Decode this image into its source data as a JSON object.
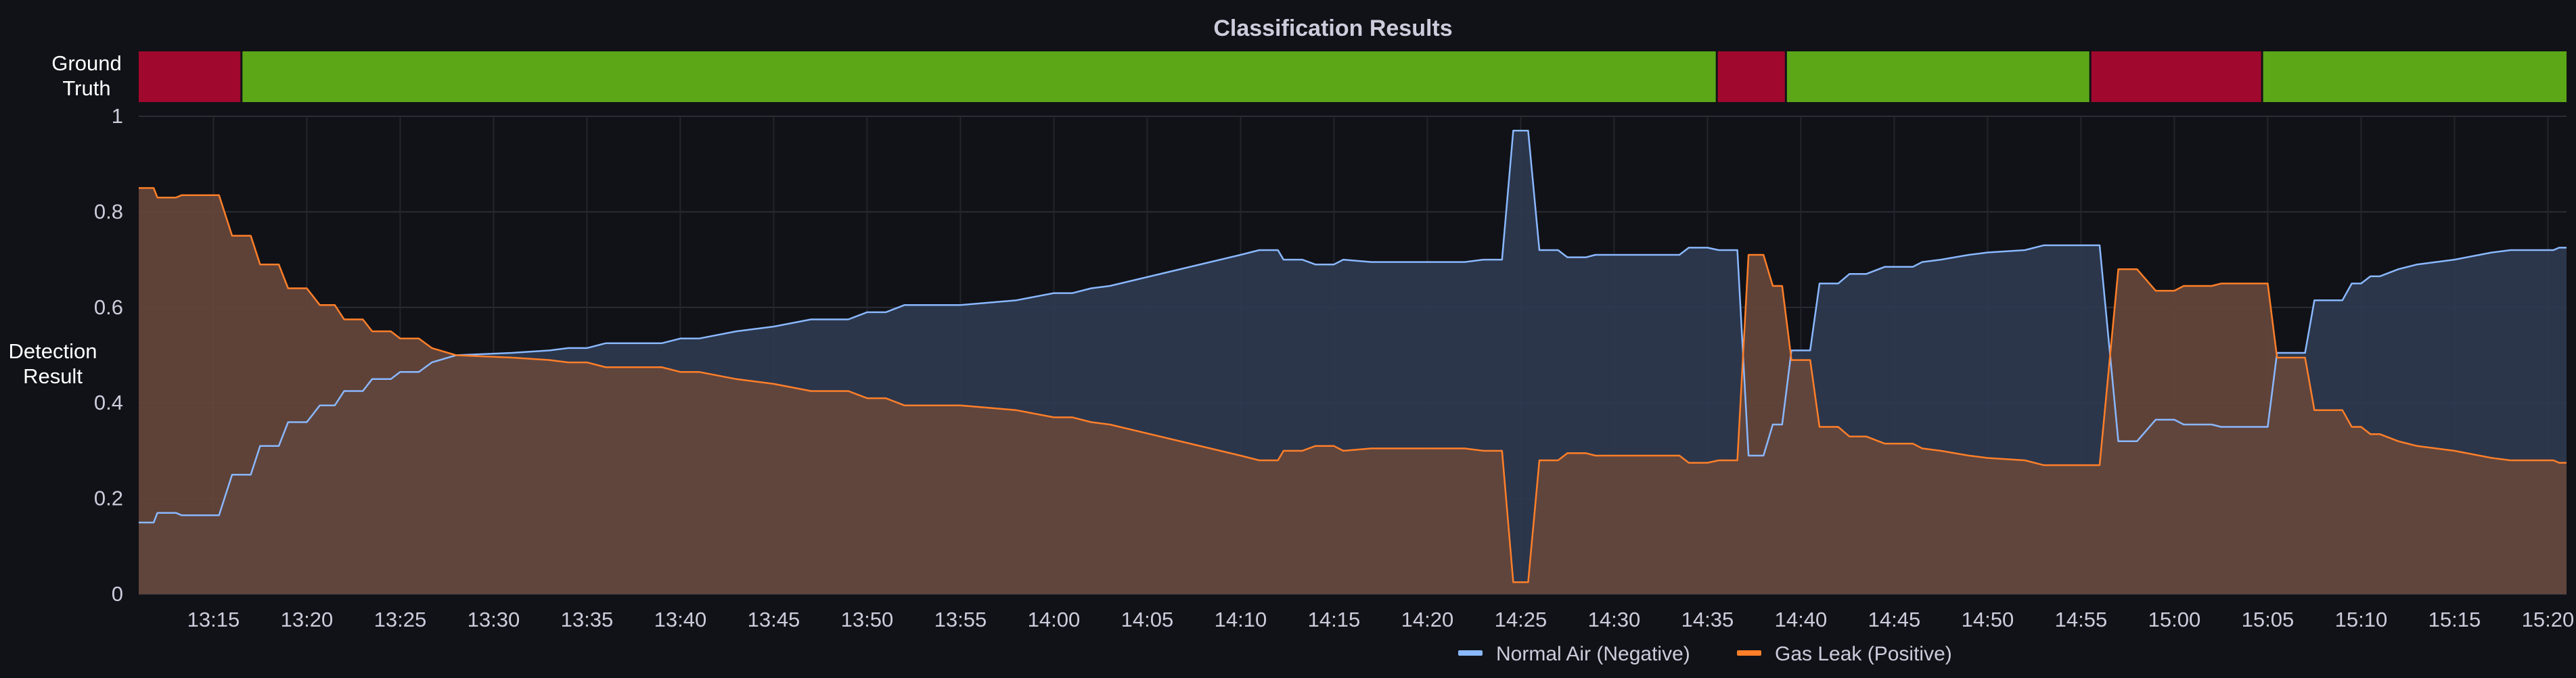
{
  "chart_data": {
    "type": "area",
    "title": "Classification Results",
    "state_timeline": {
      "label_line1": "Ground",
      "label_line2": "Truth",
      "x_start": "13:11",
      "x_end": "15:21",
      "segments": [
        {
          "start": "13:11",
          "end": "13:16.5",
          "state": "positive"
        },
        {
          "start": "13:16.5",
          "end": "14:35.5",
          "state": "negative"
        },
        {
          "start": "14:35.5",
          "end": "14:39.2",
          "state": "positive"
        },
        {
          "start": "14:39.2",
          "end": "14:55.5",
          "state": "negative"
        },
        {
          "start": "14:55.5",
          "end": "15:04.7",
          "state": "positive"
        },
        {
          "start": "15:04.7",
          "end": "15:21",
          "state": "negative"
        }
      ],
      "state_colors": {
        "positive": "#a0082e",
        "negative": "#5ba718"
      }
    },
    "ylabel_line1": "Detection",
    "ylabel_line2": "Result",
    "ylim": [
      0,
      1
    ],
    "y_ticks": [
      "0",
      "0.2",
      "0.4",
      "0.6",
      "0.8",
      "1"
    ],
    "x_ticks": [
      "13:15",
      "13:20",
      "13:25",
      "13:30",
      "13:35",
      "13:40",
      "13:45",
      "13:50",
      "13:55",
      "14:00",
      "14:05",
      "14:10",
      "14:15",
      "14:20",
      "14:25",
      "14:30",
      "14:35",
      "14:40",
      "14:45",
      "14:50",
      "14:55",
      "15:00",
      "15:05",
      "15:10",
      "15:15",
      "15:20"
    ],
    "grid": true,
    "legend_position": "bottom-right",
    "series": [
      {
        "name": "Normal Air (Negative)",
        "color": "#8ab8ff",
        "fill": "#2e3950",
        "points": [
          [
            "13:11",
            0.15
          ],
          [
            "13:11.8",
            0.15
          ],
          [
            "13:12",
            0.17
          ],
          [
            "13:13",
            0.17
          ],
          [
            "13:13.3",
            0.165
          ],
          [
            "13:14.5",
            0.165
          ],
          [
            "13:15.3",
            0.165
          ],
          [
            "13:16",
            0.25
          ],
          [
            "13:17",
            0.25
          ],
          [
            "13:17.5",
            0.31
          ],
          [
            "13:18.5",
            0.31
          ],
          [
            "13:19",
            0.36
          ],
          [
            "13:20",
            0.36
          ],
          [
            "13:20.7",
            0.395
          ],
          [
            "13:21.5",
            0.395
          ],
          [
            "13:22",
            0.425
          ],
          [
            "13:23",
            0.425
          ],
          [
            "13:23.5",
            0.45
          ],
          [
            "13:24.5",
            0.45
          ],
          [
            "13:25",
            0.465
          ],
          [
            "13:26",
            0.465
          ],
          [
            "13:26.7",
            0.485
          ],
          [
            "13:28",
            0.5
          ],
          [
            "13:31",
            0.505
          ],
          [
            "13:33",
            0.51
          ],
          [
            "13:34",
            0.515
          ],
          [
            "13:35",
            0.515
          ],
          [
            "13:36",
            0.525
          ],
          [
            "13:39",
            0.525
          ],
          [
            "13:40",
            0.535
          ],
          [
            "13:41",
            0.535
          ],
          [
            "13:43",
            0.55
          ],
          [
            "13:45",
            0.56
          ],
          [
            "13:47",
            0.575
          ],
          [
            "13:49",
            0.575
          ],
          [
            "13:50",
            0.59
          ],
          [
            "13:51",
            0.59
          ],
          [
            "13:52",
            0.605
          ],
          [
            "13:55",
            0.605
          ],
          [
            "13:58",
            0.615
          ],
          [
            "14:00",
            0.63
          ],
          [
            "14:01",
            0.63
          ],
          [
            "14:02",
            0.64
          ],
          [
            "14:03",
            0.645
          ],
          [
            "14:10",
            0.71
          ],
          [
            "14:11",
            0.72
          ],
          [
            "14:12",
            0.72
          ],
          [
            "14:12.3",
            0.7
          ],
          [
            "14:13.3",
            0.7
          ],
          [
            "14:14",
            0.69
          ],
          [
            "14:15",
            0.69
          ],
          [
            "14:15.5",
            0.7
          ],
          [
            "14:17",
            0.695
          ],
          [
            "14:22",
            0.695
          ],
          [
            "14:23",
            0.7
          ],
          [
            "14:24",
            0.7
          ],
          [
            "14:24.6",
            0.97
          ],
          [
            "14:25.4",
            0.97
          ],
          [
            "14:26",
            0.72
          ],
          [
            "14:27",
            0.72
          ],
          [
            "14:27.5",
            0.705
          ],
          [
            "14:28.5",
            0.705
          ],
          [
            "14:29",
            0.71
          ],
          [
            "14:33.5",
            0.71
          ],
          [
            "14:34",
            0.725
          ],
          [
            "14:35",
            0.725
          ],
          [
            "14:35.6",
            0.72
          ],
          [
            "14:36.6",
            0.72
          ],
          [
            "14:37.2",
            0.29
          ],
          [
            "14:38",
            0.29
          ],
          [
            "14:38.5",
            0.355
          ],
          [
            "14:39",
            0.355
          ],
          [
            "14:39.5",
            0.51
          ],
          [
            "14:40.5",
            0.51
          ],
          [
            "14:41",
            0.65
          ],
          [
            "14:42",
            0.65
          ],
          [
            "14:42.6",
            0.67
          ],
          [
            "14:43.5",
            0.67
          ],
          [
            "14:44.5",
            0.685
          ],
          [
            "14:46",
            0.685
          ],
          [
            "14:46.5",
            0.695
          ],
          [
            "14:47.5",
            0.7
          ],
          [
            "14:49",
            0.71
          ],
          [
            "14:50",
            0.715
          ],
          [
            "14:52",
            0.72
          ],
          [
            "14:53",
            0.73
          ],
          [
            "14:56",
            0.73
          ],
          [
            "14:57",
            0.32
          ],
          [
            "14:58",
            0.32
          ],
          [
            "14:59",
            0.365
          ],
          [
            "15:00",
            0.365
          ],
          [
            "15:00.5",
            0.355
          ],
          [
            "15:02",
            0.355
          ],
          [
            "15:02.5",
            0.35
          ],
          [
            "15:05",
            0.35
          ],
          [
            "15:05.5",
            0.505
          ],
          [
            "15:07",
            0.505
          ],
          [
            "15:07.5",
            0.615
          ],
          [
            "15:09",
            0.615
          ],
          [
            "15:09.5",
            0.65
          ],
          [
            "15:10",
            0.65
          ],
          [
            "15:10.5",
            0.665
          ],
          [
            "15:11",
            0.665
          ],
          [
            "15:12",
            0.68
          ],
          [
            "15:13",
            0.69
          ],
          [
            "15:15",
            0.7
          ],
          [
            "15:17",
            0.715
          ],
          [
            "15:18",
            0.72
          ],
          [
            "15:20.3",
            0.72
          ],
          [
            "15:20.6",
            0.725
          ],
          [
            "15:21",
            0.725
          ]
        ]
      },
      {
        "name": "Gas Leak (Positive)",
        "color": "#ff7f29",
        "fill": "#65473c",
        "points": [
          [
            "13:11",
            0.85
          ],
          [
            "13:11.8",
            0.85
          ],
          [
            "13:12",
            0.83
          ],
          [
            "13:13",
            0.83
          ],
          [
            "13:13.3",
            0.835
          ],
          [
            "13:15.3",
            0.835
          ],
          [
            "13:16",
            0.75
          ],
          [
            "13:17",
            0.75
          ],
          [
            "13:17.5",
            0.69
          ],
          [
            "13:18.5",
            0.69
          ],
          [
            "13:19",
            0.64
          ],
          [
            "13:20",
            0.64
          ],
          [
            "13:20.7",
            0.605
          ],
          [
            "13:21.5",
            0.605
          ],
          [
            "13:22",
            0.575
          ],
          [
            "13:23",
            0.575
          ],
          [
            "13:23.5",
            0.55
          ],
          [
            "13:24.5",
            0.55
          ],
          [
            "13:25",
            0.535
          ],
          [
            "13:26",
            0.535
          ],
          [
            "13:26.7",
            0.515
          ],
          [
            "13:28",
            0.5
          ],
          [
            "13:31",
            0.495
          ],
          [
            "13:33",
            0.49
          ],
          [
            "13:34",
            0.485
          ],
          [
            "13:35",
            0.485
          ],
          [
            "13:36",
            0.475
          ],
          [
            "13:39",
            0.475
          ],
          [
            "13:40",
            0.465
          ],
          [
            "13:41",
            0.465
          ],
          [
            "13:43",
            0.45
          ],
          [
            "13:45",
            0.44
          ],
          [
            "13:47",
            0.425
          ],
          [
            "13:49",
            0.425
          ],
          [
            "13:50",
            0.41
          ],
          [
            "13:51",
            0.41
          ],
          [
            "13:52",
            0.395
          ],
          [
            "13:55",
            0.395
          ],
          [
            "13:58",
            0.385
          ],
          [
            "14:00",
            0.37
          ],
          [
            "14:01",
            0.37
          ],
          [
            "14:02",
            0.36
          ],
          [
            "14:03",
            0.355
          ],
          [
            "14:10",
            0.29
          ],
          [
            "14:11",
            0.28
          ],
          [
            "14:12",
            0.28
          ],
          [
            "14:12.3",
            0.3
          ],
          [
            "14:13.3",
            0.3
          ],
          [
            "14:14",
            0.31
          ],
          [
            "14:15",
            0.31
          ],
          [
            "14:15.5",
            0.3
          ],
          [
            "14:17",
            0.305
          ],
          [
            "14:22",
            0.305
          ],
          [
            "14:23",
            0.3
          ],
          [
            "14:24",
            0.3
          ],
          [
            "14:24.6",
            0.025
          ],
          [
            "14:25.4",
            0.025
          ],
          [
            "14:26",
            0.28
          ],
          [
            "14:27",
            0.28
          ],
          [
            "14:27.5",
            0.295
          ],
          [
            "14:28.5",
            0.295
          ],
          [
            "14:29",
            0.29
          ],
          [
            "14:33.5",
            0.29
          ],
          [
            "14:34",
            0.275
          ],
          [
            "14:35",
            0.275
          ],
          [
            "14:35.6",
            0.28
          ],
          [
            "14:36.6",
            0.28
          ],
          [
            "14:37.2",
            0.71
          ],
          [
            "14:38",
            0.71
          ],
          [
            "14:38.5",
            0.645
          ],
          [
            "14:39",
            0.645
          ],
          [
            "14:39.5",
            0.49
          ],
          [
            "14:40.5",
            0.49
          ],
          [
            "14:41",
            0.35
          ],
          [
            "14:42",
            0.35
          ],
          [
            "14:42.6",
            0.33
          ],
          [
            "14:43.5",
            0.33
          ],
          [
            "14:44.5",
            0.315
          ],
          [
            "14:46",
            0.315
          ],
          [
            "14:46.5",
            0.305
          ],
          [
            "14:47.5",
            0.3
          ],
          [
            "14:49",
            0.29
          ],
          [
            "14:50",
            0.285
          ],
          [
            "14:52",
            0.28
          ],
          [
            "14:53",
            0.27
          ],
          [
            "14:56",
            0.27
          ],
          [
            "14:57",
            0.68
          ],
          [
            "14:58",
            0.68
          ],
          [
            "14:59",
            0.635
          ],
          [
            "15:00",
            0.635
          ],
          [
            "15:00.5",
            0.645
          ],
          [
            "15:02",
            0.645
          ],
          [
            "15:02.5",
            0.65
          ],
          [
            "15:05",
            0.65
          ],
          [
            "15:05.5",
            0.495
          ],
          [
            "15:07",
            0.495
          ],
          [
            "15:07.5",
            0.385
          ],
          [
            "15:09",
            0.385
          ],
          [
            "15:09.5",
            0.35
          ],
          [
            "15:10",
            0.35
          ],
          [
            "15:10.5",
            0.335
          ],
          [
            "15:11",
            0.335
          ],
          [
            "15:12",
            0.32
          ],
          [
            "15:13",
            0.31
          ],
          [
            "15:15",
            0.3
          ],
          [
            "15:17",
            0.285
          ],
          [
            "15:18",
            0.28
          ],
          [
            "15:20.3",
            0.28
          ],
          [
            "15:20.6",
            0.275
          ],
          [
            "15:21",
            0.275
          ]
        ]
      }
    ]
  }
}
